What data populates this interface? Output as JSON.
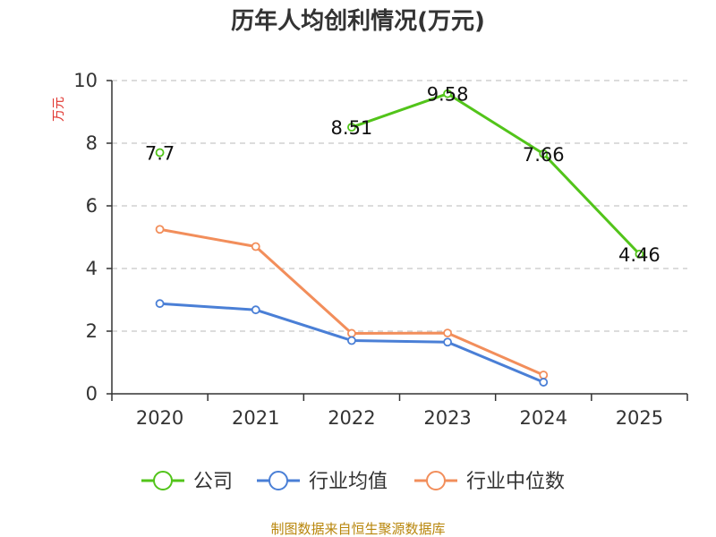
{
  "chart_data": {
    "type": "line",
    "title": "历年人均创利情况(万元)",
    "ylabel": "万元",
    "xlabel": "",
    "categories": [
      "2020",
      "2021",
      "2022",
      "2023",
      "2024",
      "2025"
    ],
    "ylim": [
      0,
      10
    ],
    "yticks": [
      0,
      2,
      4,
      6,
      8,
      10
    ],
    "grid": true,
    "legend_position": "bottom",
    "series": [
      {
        "name": "公司",
        "color": "#52c41a",
        "values": [
          7.7,
          null,
          8.51,
          9.58,
          7.66,
          4.46
        ],
        "labels": [
          "7.7",
          "",
          "8.51",
          "9.58",
          "7.66",
          "4.46"
        ]
      },
      {
        "name": "行业均值",
        "color": "#4a7fd6",
        "values": [
          2.88,
          2.68,
          1.7,
          1.65,
          0.37,
          null
        ]
      },
      {
        "name": "行业中位数",
        "color": "#f28e5b",
        "values": [
          5.25,
          4.7,
          1.93,
          1.94,
          0.6,
          null
        ]
      }
    ]
  },
  "source": "制图数据来自恒生聚源数据库"
}
